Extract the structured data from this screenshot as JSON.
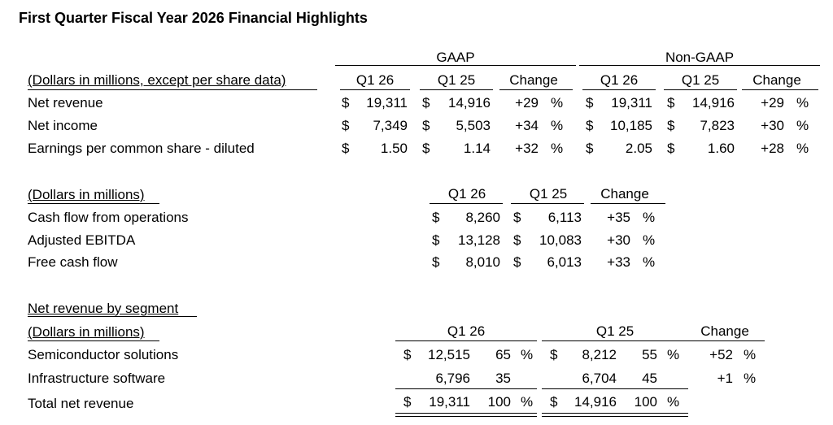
{
  "title": "First Quarter Fiscal Year 2026 Financial Highlights",
  "t1": {
    "gaap_label": "GAAP",
    "nongaap_label": "Non-GAAP",
    "caption": "(Dollars in millions, except per share data)",
    "cols": [
      "Q1 26",
      "Q1 25",
      "Change",
      "Q1 26",
      "Q1 25",
      "Change"
    ],
    "rows": [
      {
        "label": "Net revenue",
        "g26_cur": "$",
        "g26": "19,311",
        "g25_cur": "$",
        "g25": "14,916",
        "gchg": "+29",
        "gpct": "%",
        "n26_cur": "$",
        "n26": "19,311",
        "n25_cur": "$",
        "n25": "14,916",
        "nchg": "+29",
        "npct": "%"
      },
      {
        "label": "Net income",
        "g26_cur": "$",
        "g26": "7,349",
        "g25_cur": "$",
        "g25": "5,503",
        "gchg": "+34",
        "gpct": "%",
        "n26_cur": "$",
        "n26": "10,185",
        "n25_cur": "$",
        "n25": "7,823",
        "nchg": "+30",
        "npct": "%"
      },
      {
        "label": "Earnings per common share - diluted",
        "g26_cur": "$",
        "g26": "1.50",
        "g25_cur": "$",
        "g25": "1.14",
        "gchg": "+32",
        "gpct": "%",
        "n26_cur": "$",
        "n26": "2.05",
        "n25_cur": "$",
        "n25": "1.60",
        "nchg": "+28",
        "npct": "%"
      }
    ]
  },
  "t2": {
    "caption": "(Dollars in millions)",
    "cols": [
      "Q1 26",
      "Q1 25",
      "Change"
    ],
    "rows": [
      {
        "label": "Cash flow from operations",
        "c26": "$",
        "v26": "8,260",
        "c25": "$",
        "v25": "6,113",
        "chg": "+35",
        "pct": "%"
      },
      {
        "label": "Adjusted EBITDA",
        "c26": "$",
        "v26": "13,128",
        "c25": "$",
        "v25": "10,083",
        "chg": "+30",
        "pct": "%"
      },
      {
        "label": "Free cash flow",
        "c26": "$",
        "v26": "8,010",
        "c25": "$",
        "v25": "6,013",
        "chg": "+33",
        "pct": "%"
      }
    ]
  },
  "t3": {
    "heading": "Net revenue by segment",
    "caption": "(Dollars in millions)",
    "cols": [
      "Q1 26",
      "Q1 25",
      "Change"
    ],
    "rows": [
      {
        "label": "Semiconductor solutions",
        "c26": "$",
        "v26": "12,515",
        "p26": "65",
        "s26": "%",
        "c25": "$",
        "v25": "8,212",
        "p25": "55",
        "s25": "%",
        "chg": "+52",
        "pct": "%"
      },
      {
        "label": "Infrastructure software",
        "c26": "",
        "v26": "6,796",
        "p26": "35",
        "s26": "",
        "c25": "",
        "v25": "6,704",
        "p25": "45",
        "s25": "",
        "chg": "+1",
        "pct": "%"
      }
    ],
    "total": {
      "label": "Total net revenue",
      "c26": "$",
      "v26": "19,311",
      "p26": "100",
      "s26": "%",
      "c25": "$",
      "v25": "14,916",
      "p25": "100",
      "s25": "%"
    }
  }
}
